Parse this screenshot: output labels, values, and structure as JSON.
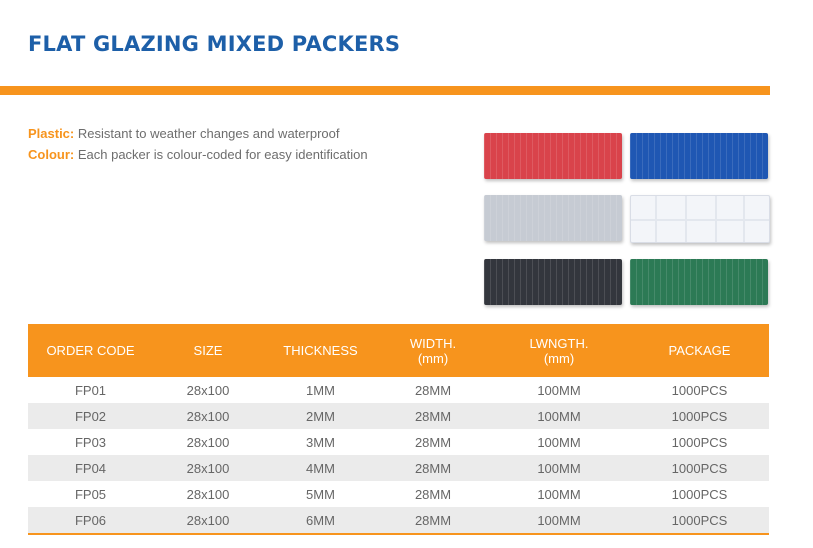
{
  "title": "FLAT GLAZING MIXED PACKERS",
  "features": [
    {
      "label": "Plastic:",
      "text": "Resistant to weather changes and waterproof"
    },
    {
      "label": "Colour:",
      "text": "Each packer is colour-coded for easy identification"
    }
  ],
  "swatches": [
    {
      "name": "red",
      "color": "#d9434b"
    },
    {
      "name": "blue",
      "color": "#1f57b3"
    },
    {
      "name": "grey",
      "color": "#c6cbd3"
    },
    {
      "name": "clear",
      "color": "#f3f5f9"
    },
    {
      "name": "black",
      "color": "#33363d"
    },
    {
      "name": "green",
      "color": "#2c7a55"
    }
  ],
  "table": {
    "headers": [
      {
        "line1": "ORDER CODE",
        "line2": ""
      },
      {
        "line1": "SIZE",
        "line2": ""
      },
      {
        "line1": "THICKNESS",
        "line2": ""
      },
      {
        "line1": "WIDTH.",
        "line2": "(mm)"
      },
      {
        "line1": "LWNGTH.",
        "line2": "(mm)"
      },
      {
        "line1": "PACKAGE",
        "line2": ""
      }
    ],
    "rows": [
      [
        "FP01",
        "28x100",
        "1MM",
        "28MM",
        "100MM",
        "1000PCS"
      ],
      [
        "FP02",
        "28x100",
        "2MM",
        "28MM",
        "100MM",
        "1000PCS"
      ],
      [
        "FP03",
        "28x100",
        "3MM",
        "28MM",
        "100MM",
        "1000PCS"
      ],
      [
        "FP04",
        "28x100",
        "4MM",
        "28MM",
        "100MM",
        "1000PCS"
      ],
      [
        "FP05",
        "28x100",
        "5MM",
        "28MM",
        "100MM",
        "1000PCS"
      ],
      [
        "FP06",
        "28x100",
        "6MM",
        "28MM",
        "100MM",
        "1000PCS"
      ]
    ]
  }
}
